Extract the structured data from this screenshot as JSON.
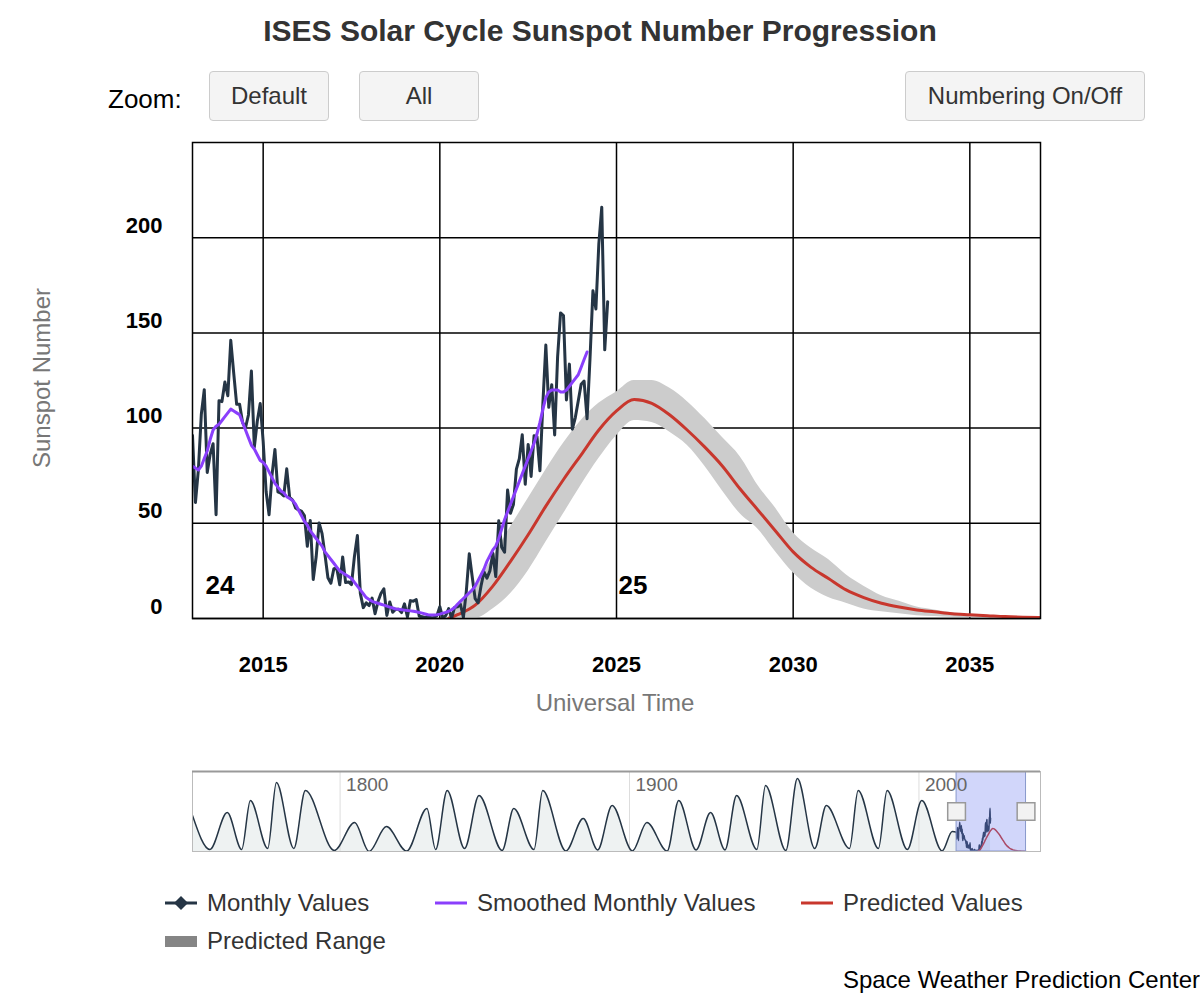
{
  "chart_data": [
    {
      "type": "line",
      "title": "ISES Solar Cycle Sunspot Number Progression",
      "controls": {
        "zoom_label": "Zoom:",
        "buttons": [
          "Default",
          "All",
          "Numbering On/Off"
        ]
      },
      "x_label": "Universal Time",
      "y_label": "Sunspot Number",
      "caption": "Space Weather Prediction Center",
      "xlim": [
        2013,
        2037
      ],
      "xticks": [
        2015,
        2020,
        2025,
        2030,
        2035
      ],
      "ylim": [
        0,
        250
      ],
      "yticks": [
        0,
        50,
        100,
        150,
        200
      ],
      "grid": true,
      "legend": "bottom",
      "annotations": [
        {
          "text": "24",
          "x": 2013.37,
          "y": 17
        },
        {
          "text": "25",
          "x": 2025.06,
          "y": 17
        }
      ],
      "series": [
        {
          "name": "Monthly Values",
          "color": "#253545",
          "marker": "diamond",
          "x": [
            2013,
            2013.083,
            2013.167,
            2013.25,
            2013.333,
            2013.417,
            2013.5,
            2013.583,
            2013.667,
            2013.75,
            2013.833,
            2013.917,
            2014,
            2014.083,
            2014.167,
            2014.25,
            2014.333,
            2014.417,
            2014.5,
            2014.583,
            2014.667,
            2014.75,
            2014.833,
            2014.917,
            2015,
            2015.083,
            2015.167,
            2015.25,
            2015.333,
            2015.417,
            2015.5,
            2015.583,
            2015.667,
            2015.75,
            2015.833,
            2015.917,
            2016,
            2016.083,
            2016.167,
            2016.25,
            2016.333,
            2016.417,
            2016.5,
            2016.583,
            2016.667,
            2016.75,
            2016.833,
            2016.917,
            2017,
            2017.083,
            2017.167,
            2017.25,
            2017.333,
            2017.417,
            2017.5,
            2017.583,
            2017.667,
            2017.75,
            2017.833,
            2017.917,
            2018,
            2018.083,
            2018.167,
            2018.25,
            2018.333,
            2018.417,
            2018.5,
            2018.583,
            2018.667,
            2018.75,
            2018.833,
            2018.917,
            2019,
            2019.083,
            2019.167,
            2019.25,
            2019.333,
            2019.417,
            2019.5,
            2019.583,
            2019.667,
            2019.75,
            2019.833,
            2019.917,
            2020,
            2020.083,
            2020.167,
            2020.25,
            2020.333,
            2020.417,
            2020.5,
            2020.583,
            2020.667,
            2020.75,
            2020.833,
            2020.917,
            2021,
            2021.083,
            2021.167,
            2021.25,
            2021.333,
            2021.417,
            2021.5,
            2021.583,
            2021.667,
            2021.75,
            2021.833,
            2021.917,
            2022,
            2022.083,
            2022.167,
            2022.25,
            2022.333,
            2022.417,
            2022.5,
            2022.583,
            2022.667,
            2022.75,
            2022.833,
            2022.917,
            2023,
            2023.083,
            2023.167,
            2023.25,
            2023.333,
            2023.417,
            2023.5,
            2023.583,
            2023.667,
            2023.75,
            2023.833,
            2023.917,
            2024,
            2024.083,
            2024.167,
            2024.25,
            2024.333,
            2024.417,
            2024.5,
            2024.583,
            2024.667,
            2024.75
          ],
          "values": [
            96.1,
            60.9,
            78.3,
            107.3,
            120.2,
            76.7,
            86.2,
            91.8,
            54.5,
            114.4,
            113.9,
            124.2,
            117.0,
            146.1,
            128.7,
            112.5,
            112.5,
            102.9,
            100.2,
            106.9,
            130.0,
            90.0,
            103.6,
            112.9,
            93.0,
            66.7,
            54.5,
            75.3,
            88.8,
            66.5,
            65.8,
            64.4,
            78.6,
            63.6,
            62.2,
            58.0,
            57.0,
            56.4,
            54.1,
            37.9,
            51.5,
            20.5,
            32.4,
            50.2,
            44.6,
            33.4,
            21.4,
            18.5,
            26.1,
            26.4,
            17.7,
            32.3,
            18.9,
            19.2,
            17.8,
            32.6,
            43.6,
            13.2,
            5.7,
            8.2,
            6.8,
            10.7,
            2.5,
            8.9,
            13.1,
            15.6,
            1.6,
            8.7,
            3.3,
            4.9,
            4.9,
            3.1,
            7.7,
            0.8,
            9.4,
            9.1,
            9.9,
            1.2,
            0.9,
            0.5,
            1.1,
            0.4,
            0.5,
            1.5,
            6.2,
            0.2,
            1.5,
            5.2,
            0.2,
            5.8,
            6.1,
            7.5,
            0.6,
            14.4,
            34.0,
            21.8,
            10.4,
            8.2,
            17.2,
            24.5,
            21.2,
            25.0,
            34.3,
            22.0,
            51.3,
            37.4,
            34.8,
            67.5,
            55.3,
            59.9,
            78.5,
            84.0,
            96.5,
            70.5,
            91.4,
            74.6,
            96.0,
            95.5,
            77.6,
            113.1,
            143.6,
            110.9,
            122.8,
            96.4,
            137.4,
            160.5,
            159.1,
            114.8,
            133.6,
            99.4,
            105.4,
            114.2,
            123.0,
            124.7,
            104.9,
            136.5,
            172.1,
            162.6,
            196.8,
            216.0,
            141.1,
            166.4
          ]
        },
        {
          "name": "Smoothed Monthly Values",
          "color": "#8a3ffc",
          "x": [
            2013,
            2013.083,
            2013.167,
            2013.25,
            2013.333,
            2013.417,
            2013.5,
            2013.583,
            2013.667,
            2013.75,
            2013.833,
            2013.917,
            2014,
            2014.083,
            2014.167,
            2014.25,
            2014.333,
            2014.417,
            2014.5,
            2014.583,
            2014.667,
            2014.75,
            2014.833,
            2014.917,
            2015,
            2015.083,
            2015.167,
            2015.25,
            2015.333,
            2015.417,
            2015.5,
            2015.583,
            2015.667,
            2015.75,
            2015.833,
            2015.917,
            2016,
            2016.083,
            2016.167,
            2016.25,
            2016.333,
            2016.417,
            2016.5,
            2016.583,
            2016.667,
            2016.75,
            2016.833,
            2016.917,
            2017,
            2017.083,
            2017.167,
            2017.25,
            2017.333,
            2017.417,
            2017.5,
            2017.583,
            2017.667,
            2017.75,
            2017.833,
            2017.917,
            2018,
            2018.083,
            2018.167,
            2018.25,
            2018.333,
            2018.417,
            2018.5,
            2018.583,
            2018.667,
            2018.75,
            2018.833,
            2018.917,
            2019,
            2019.083,
            2019.167,
            2019.25,
            2019.333,
            2019.417,
            2019.5,
            2019.583,
            2019.667,
            2019.75,
            2019.833,
            2019.917,
            2020,
            2020.083,
            2020.167,
            2020.25,
            2020.333,
            2020.417,
            2020.5,
            2020.583,
            2020.667,
            2020.75,
            2020.833,
            2020.917,
            2021,
            2021.083,
            2021.167,
            2021.25,
            2021.333,
            2021.417,
            2021.5,
            2021.583,
            2021.667,
            2021.75,
            2021.833,
            2021.917,
            2022,
            2022.083,
            2022.167,
            2022.25,
            2022.333,
            2022.417,
            2022.5,
            2022.583,
            2022.667,
            2022.75,
            2022.833,
            2022.917,
            2023,
            2023.083,
            2023.167,
            2023.25,
            2023.333,
            2023.417,
            2023.5,
            2023.583,
            2023.667,
            2023.75,
            2023.833,
            2023.917,
            2024,
            2024.083,
            2024.167
          ],
          "values": [
            80,
            79,
            78,
            80,
            84,
            88,
            94,
            99,
            101,
            102,
            104,
            106,
            108,
            110,
            109,
            108,
            107,
            103,
            99,
            95,
            91,
            89,
            86,
            83,
            82,
            80,
            77,
            74,
            71,
            69,
            67,
            66,
            64,
            63,
            62,
            60,
            57,
            54,
            51,
            49,
            46,
            44,
            42,
            40,
            38,
            35,
            33,
            31,
            29,
            27,
            25,
            24,
            23,
            22,
            21,
            19,
            17,
            15,
            13,
            11,
            10,
            9,
            8.5,
            8,
            7.5,
            7,
            6.5,
            6,
            5.5,
            5,
            4.8,
            4.6,
            4.4,
            4.2,
            4,
            3.8,
            3.5,
            3.2,
            2.8,
            2.4,
            2.0,
            1.8,
            1.8,
            2.0,
            2.3,
            2.8,
            3.2,
            3.8,
            4.6,
            5.8,
            7.5,
            9.0,
            10.5,
            12.0,
            13.5,
            15,
            17,
            20,
            23,
            26,
            30,
            33,
            36,
            38,
            42,
            47,
            52,
            56,
            60,
            64,
            68,
            72,
            76,
            80,
            84,
            88,
            92,
            97,
            103,
            110,
            116,
            119,
            120,
            120,
            120,
            119,
            119,
            120,
            122,
            124,
            126,
            128,
            132,
            136,
            140
          ]
        },
        {
          "name": "Predicted Values",
          "color": "#c8372d",
          "x": [
            2020.25,
            2020.5,
            2021,
            2021.5,
            2022,
            2022.5,
            2023,
            2023.5,
            2024,
            2024.5,
            2025,
            2025.5,
            2026,
            2026.5,
            2027,
            2027.5,
            2028,
            2028.5,
            2029,
            2029.5,
            2030,
            2030.5,
            2031,
            2031.5,
            2032,
            2032.5,
            2033,
            2033.5,
            2034,
            2034.5,
            2035,
            2035.5,
            2036,
            2036.5,
            2037
          ],
          "values": [
            0,
            2,
            7,
            17,
            30,
            44,
            59,
            73,
            86,
            99,
            109,
            115,
            113,
            107,
            99,
            90,
            80,
            68,
            57,
            46,
            35,
            27,
            21,
            15,
            11,
            8,
            6,
            4.5,
            3.5,
            2.5,
            2,
            1.5,
            1,
            0.7,
            0.5
          ]
        },
        {
          "name": "Predicted Range",
          "type": "area",
          "color": "#cccccc",
          "x": [
            2020.25,
            2020.5,
            2021,
            2021.5,
            2022,
            2022.5,
            2023,
            2023.5,
            2024,
            2024.5,
            2025,
            2025.5,
            2026,
            2026.5,
            2027,
            2027.5,
            2028,
            2028.5,
            2029,
            2029.5,
            2030,
            2030.5,
            2031,
            2031.5,
            2032,
            2032.5,
            2033,
            2033.5,
            2034,
            2034.5,
            2035,
            2035.5,
            2036,
            2036.5,
            2037
          ],
          "low": [
            0,
            0,
            0,
            5,
            13,
            25,
            40,
            55,
            70,
            84,
            96,
            104,
            103,
            98,
            91,
            80,
            67,
            55,
            47,
            35,
            24,
            16,
            11,
            8,
            5,
            3.5,
            2.5,
            1.5,
            1,
            0.6,
            0.4,
            0.3,
            0.2,
            0.1,
            0.1
          ],
          "high": [
            1,
            6,
            17,
            32,
            48,
            63,
            78,
            92,
            104,
            113,
            119,
            125,
            125,
            121,
            114,
            105,
            95,
            85,
            70,
            58,
            45,
            37,
            31,
            23,
            17,
            12,
            9,
            6,
            4.5,
            3,
            2,
            1.5,
            1,
            0.7,
            0.5
          ]
        }
      ]
    },
    {
      "type": "line",
      "xlim": [
        1749,
        2042
      ],
      "xticks": [
        1800,
        1900,
        2000
      ],
      "ylim": [
        0,
        400
      ],
      "tick_labels": "x",
      "grid": "x",
      "series": [
        {
          "color": "#253545",
          "x": [
            1749,
            1755,
            1761,
            1766,
            1769,
            1775,
            1778,
            1784,
            1788,
            1798,
            1805,
            1810,
            1816,
            1823,
            1830,
            1833,
            1837,
            1843,
            1848,
            1856,
            1860,
            1867,
            1870,
            1878,
            1884,
            1889,
            1894,
            1901,
            1906,
            1913,
            1917,
            1923,
            1928,
            1933,
            1937,
            1944,
            1947,
            1954,
            1958,
            1964,
            1968,
            1976,
            1979,
            1986,
            1989,
            1996,
            2001,
            2008,
            2011.5
          ],
          "values": [
            180,
            10,
            195,
            10,
            255,
            15,
            345,
            15,
            305,
            5,
            145,
            0,
            125,
            2,
            215,
            10,
            305,
            15,
            280,
            5,
            215,
            10,
            305,
            3,
            165,
            8,
            230,
            3,
            145,
            2,
            255,
            8,
            195,
            8,
            280,
            10,
            330,
            5,
            365,
            15,
            230,
            15,
            305,
            15,
            305,
            10,
            255,
            3,
            100
          ]
        }
      ]
    }
  ]
}
